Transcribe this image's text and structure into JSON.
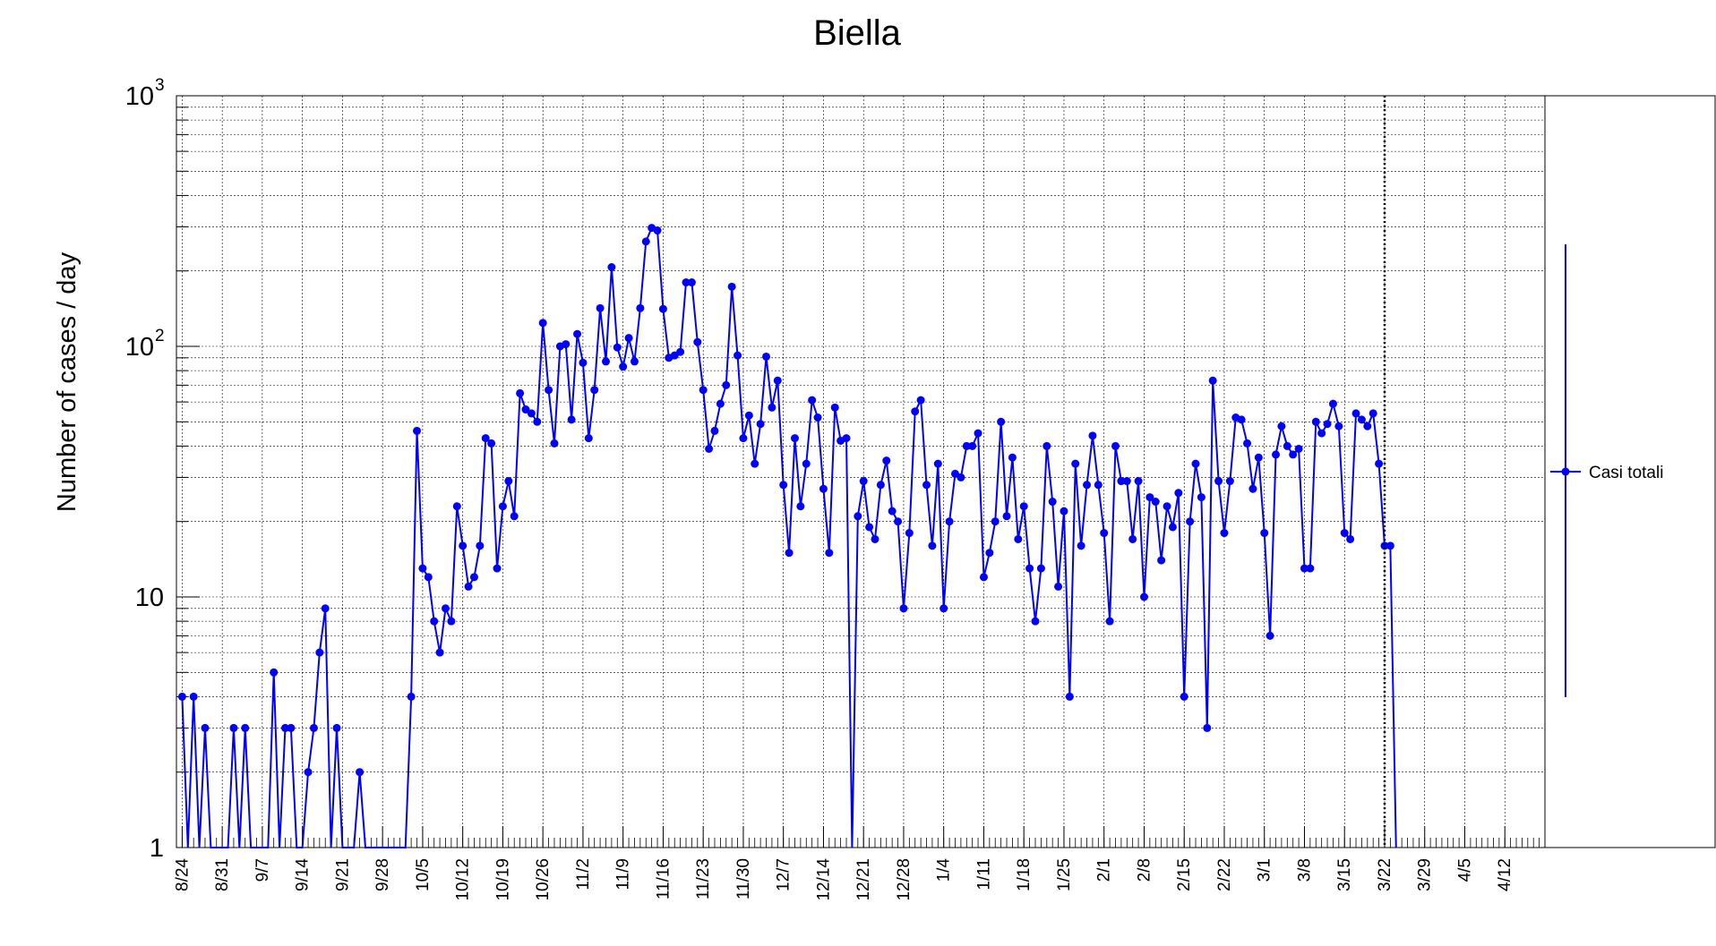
{
  "chart_data": {
    "type": "line",
    "title": "Biella",
    "xlabel": "",
    "ylabel": "Number of cases / day",
    "y_scale": "log",
    "ylim": [
      1,
      1000
    ],
    "y_ticks": [
      {
        "value": 1,
        "base": "1",
        "exp": ""
      },
      {
        "value": 10,
        "base": "10",
        "exp": ""
      },
      {
        "value": 100,
        "base": "10",
        "exp": "2"
      },
      {
        "value": 1000,
        "base": "10",
        "exp": "3"
      }
    ],
    "x_range": [
      "2020-08-23",
      "2021-04-19"
    ],
    "x_tick_labels": [
      "8/24",
      "8/31",
      "9/7",
      "9/14",
      "9/21",
      "9/28",
      "10/5",
      "10/12",
      "10/19",
      "10/26",
      "11/2",
      "11/9",
      "11/16",
      "11/23",
      "11/30",
      "12/7",
      "12/14",
      "12/21",
      "12/28",
      "1/4",
      "1/11",
      "1/18",
      "1/25",
      "2/1",
      "2/8",
      "2/15",
      "2/22",
      "3/1",
      "3/8",
      "3/15",
      "3/22",
      "3/29",
      "4/5",
      "4/12"
    ],
    "x_tick_dates": [
      "2020-08-24",
      "2020-08-31",
      "2020-09-07",
      "2020-09-14",
      "2020-09-21",
      "2020-09-28",
      "2020-10-05",
      "2020-10-12",
      "2020-10-19",
      "2020-10-26",
      "2020-11-02",
      "2020-11-09",
      "2020-11-16",
      "2020-11-23",
      "2020-11-30",
      "2020-12-07",
      "2020-12-14",
      "2020-12-21",
      "2020-12-28",
      "2021-01-04",
      "2021-01-11",
      "2021-01-18",
      "2021-01-25",
      "2021-02-01",
      "2021-02-08",
      "2021-02-15",
      "2021-02-22",
      "2021-03-01",
      "2021-03-08",
      "2021-03-15",
      "2021-03-22",
      "2021-03-29",
      "2021-04-05",
      "2021-04-12"
    ],
    "grid": true,
    "legend_position": "right",
    "vertical_marker_date": "2021-03-22",
    "series": [
      {
        "name": "Casi totali",
        "color": "#0000ff",
        "start_date": "2020-08-24",
        "values": [
          4,
          0,
          4,
          0,
          3,
          0,
          0,
          0,
          0,
          3,
          0,
          3,
          0,
          0,
          0,
          0,
          5,
          0,
          3,
          3,
          0,
          0,
          2,
          3,
          6,
          9,
          0,
          3,
          0,
          0,
          0,
          2,
          0,
          0,
          0,
          0,
          0,
          0,
          0,
          0,
          4,
          46,
          13,
          12,
          8,
          6,
          9,
          8,
          23,
          16,
          11,
          12,
          16,
          43,
          41,
          13,
          23,
          29,
          21,
          65,
          56,
          54,
          50,
          124,
          67,
          41,
          100,
          102,
          51,
          112,
          86,
          43,
          67,
          142,
          87,
          207,
          99,
          83,
          108,
          87,
          142,
          262,
          297,
          290,
          141,
          90,
          92,
          95,
          180,
          180,
          104,
          67,
          39,
          46,
          59,
          70,
          173,
          92,
          43,
          53,
          34,
          49,
          91,
          57,
          73,
          28,
          15,
          43,
          23,
          34,
          61,
          52,
          27,
          15,
          57,
          42,
          43,
          0,
          21,
          29,
          19,
          17,
          28,
          35,
          22,
          20,
          9,
          18,
          55,
          61,
          28,
          16,
          34,
          9,
          20,
          31,
          30,
          40,
          40,
          45,
          12,
          15,
          20,
          50,
          21,
          36,
          17,
          23,
          13,
          8,
          13,
          40,
          24,
          11,
          22,
          4,
          34,
          16,
          28,
          44,
          28,
          18,
          8,
          40,
          29,
          29,
          17,
          29,
          10,
          25,
          24,
          14,
          23,
          19,
          26,
          4,
          20,
          34,
          25,
          3,
          73,
          29,
          18,
          29,
          52,
          51,
          41,
          27,
          36,
          18,
          7,
          37,
          48,
          40,
          37,
          39,
          13,
          13,
          50,
          45,
          49,
          59,
          48,
          18,
          17,
          54,
          51,
          48,
          54,
          34,
          16,
          16,
          0
        ]
      }
    ]
  }
}
